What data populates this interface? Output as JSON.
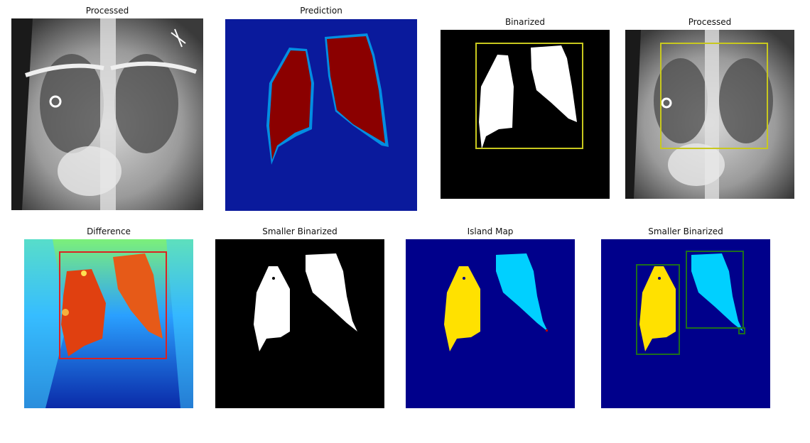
{
  "figure": {
    "panels": [
      {
        "title": "Processed"
      },
      {
        "title": "Prediction"
      },
      {
        "title": "Binarized"
      },
      {
        "title": "Processed"
      },
      {
        "title": "Difference"
      },
      {
        "title": "Smaller Binarized"
      },
      {
        "title": "Island Map"
      },
      {
        "title": "Smaller Binarized"
      }
    ]
  },
  "colors": {
    "background": "#ffffff",
    "jet_low": "#00008b",
    "jet_high": "#8b0000",
    "yellow_box": "#c8c81e",
    "red_box": "#dc2222",
    "green_box": "#1e6e1e",
    "island_yellow": "#ffe100",
    "island_cyan": "#00d0ff"
  }
}
